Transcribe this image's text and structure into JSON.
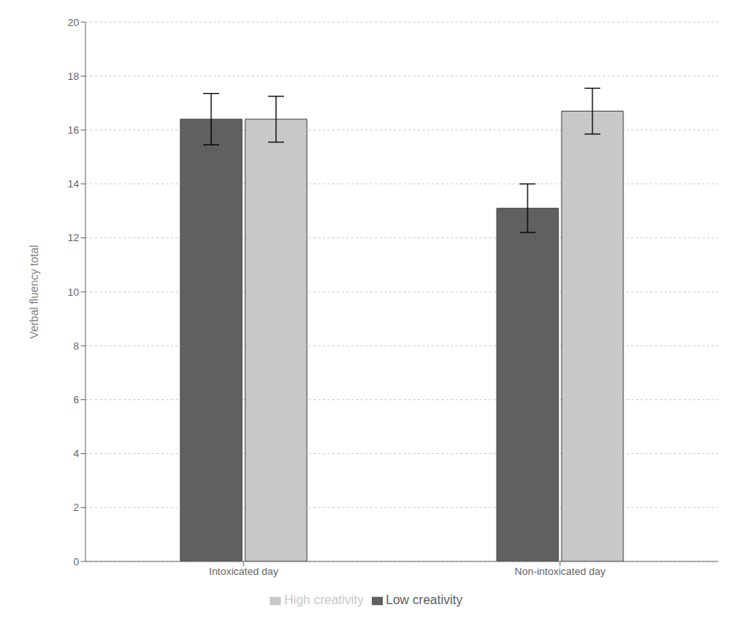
{
  "chart_data": {
    "type": "bar",
    "categories": [
      "Intoxicated day",
      "Non-intoxicated day"
    ],
    "series": [
      {
        "name": "Low creativity",
        "color": "#606060",
        "values": [
          16.4,
          13.1
        ],
        "errors": [
          0.95,
          0.9
        ]
      },
      {
        "name": "High creativity",
        "color": "#c8c8c8",
        "values": [
          16.4,
          16.7
        ],
        "errors": [
          0.85,
          0.85
        ]
      }
    ],
    "y_label": "Verbal fluency total",
    "ylim": [
      0,
      20
    ],
    "yticks": [
      0,
      2,
      4,
      6,
      8,
      10,
      12,
      14,
      16,
      18,
      20
    ],
    "grid": true,
    "legend": "bottom"
  }
}
